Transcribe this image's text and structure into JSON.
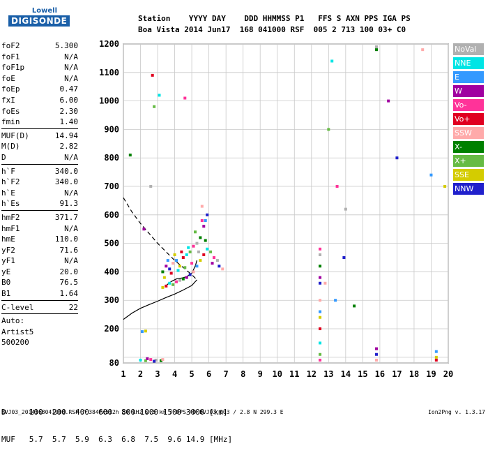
{
  "logo": {
    "top": "Lowell",
    "bottom": "DIGISONDE"
  },
  "header": {
    "row1": "Station    YYYY DAY    DDD HHMMSS P1   FFS S AXN PPS IGA PS",
    "row2": "Boa Vista 2014 Jun17  168 041000 RSF  005 2 713 100 03+ C0"
  },
  "params_group1": [
    {
      "name": "foF2",
      "value": "5.300"
    },
    {
      "name": "foF1",
      "value": "N/A"
    },
    {
      "name": "foF1p",
      "value": "N/A"
    },
    {
      "name": "foE",
      "value": "N/A"
    },
    {
      "name": "foEp",
      "value": "0.47"
    },
    {
      "name": "fxI",
      "value": "6.00"
    },
    {
      "name": "foEs",
      "value": "2.30"
    },
    {
      "name": "fmin",
      "value": "1.40"
    }
  ],
  "params_group2": [
    {
      "name": "MUF(D)",
      "value": "14.94"
    },
    {
      "name": "M(D)",
      "value": "2.82"
    },
    {
      "name": "D",
      "value": "N/A"
    }
  ],
  "params_group3": [
    {
      "name": "h`F",
      "value": "340.0"
    },
    {
      "name": "h`F2",
      "value": "340.0"
    },
    {
      "name": "h`E",
      "value": "N/A"
    },
    {
      "name": "h`Es",
      "value": "91.3"
    }
  ],
  "params_group4": [
    {
      "name": "hmF2",
      "value": "371.7"
    },
    {
      "name": "hmF1",
      "value": "N/A"
    },
    {
      "name": "hmE",
      "value": "110.0"
    },
    {
      "name": "yF2",
      "value": "71.6"
    },
    {
      "name": "yF1",
      "value": "N/A"
    },
    {
      "name": "yE",
      "value": "20.0"
    },
    {
      "name": "B0",
      "value": "76.5"
    },
    {
      "name": "B1",
      "value": "1.64"
    }
  ],
  "clevel": {
    "name": "C-level",
    "value": "22"
  },
  "auto": [
    "Auto:",
    "Artist5",
    "500200"
  ],
  "legend": [
    {
      "label": "NoVal",
      "color": "#b0b0b0"
    },
    {
      "label": "NNE",
      "color": "#00e5e5"
    },
    {
      "label": "E",
      "color": "#3399ff"
    },
    {
      "label": "W",
      "color": "#a000a0"
    },
    {
      "label": "Vo-",
      "color": "#ff3399"
    },
    {
      "label": "Vo+",
      "color": "#e00020"
    },
    {
      "label": "SSW",
      "color": "#ffaaaa"
    },
    {
      "label": "X-",
      "color": "#008000"
    },
    {
      "label": "X+",
      "color": "#66bb44"
    },
    {
      "label": "SSE",
      "color": "#d4cc00"
    },
    {
      "label": "NNW",
      "color": "#2020cc"
    }
  ],
  "bottom_table": {
    "row1": "D     100  200  400  600  800 1000 1500 3000 [km]",
    "row2": "MUF   5.7  5.7  5.9  6.3  6.8  7.5  9.6 14.9 [MHz]"
  },
  "footer_left": "BVJ03_2014168041000.RSF / 384fx512h 50 kHz 2.5 km / DPS-4D BVJ03 003 / 2.8 N 299.3 E",
  "footer_right": "Ion2Png v. 1.3.17",
  "chart_data": {
    "type": "scatter",
    "title": "",
    "xlabel": "",
    "ylabel": "",
    "xlim": [
      1,
      20
    ],
    "ylim": [
      80,
      1200
    ],
    "x_ticks": [
      1,
      2,
      3,
      4,
      5,
      6,
      7,
      8,
      9,
      10,
      11,
      12,
      13,
      14,
      15,
      16,
      17,
      18,
      19,
      20
    ],
    "y_ticks": [
      80,
      100,
      200,
      300,
      400,
      500,
      600,
      700,
      800,
      900,
      1000,
      1100,
      1200
    ],
    "y_tick_labels_shown": [
      80,
      200,
      300,
      400,
      500,
      600,
      700,
      800,
      900,
      1000,
      1100,
      1200
    ],
    "grid": true,
    "legend_placement": "right",
    "series": [
      {
        "kind": "line",
        "style": "solid",
        "x": [
          1.0,
          1.5,
          2.0,
          2.5,
          3.0,
          3.5,
          4.0,
          4.5,
          5.0,
          5.3
        ],
        "y": [
          233,
          255,
          272,
          285,
          297,
          310,
          322,
          336,
          352,
          372
        ]
      },
      {
        "kind": "line",
        "style": "dashed",
        "x": [
          1.0,
          1.5,
          2.0,
          2.5,
          3.0,
          3.5,
          4.0,
          4.5,
          5.0,
          5.3
        ],
        "y": [
          660,
          610,
          570,
          535,
          500,
          470,
          440,
          415,
          390,
          372
        ]
      },
      {
        "kind": "line",
        "style": "solid",
        "x": [
          3.5,
          3.8,
          4.1,
          4.4,
          4.7,
          5.0,
          5.2,
          5.3
        ],
        "y": [
          352,
          366,
          375,
          378,
          383,
          395,
          420,
          440
        ]
      },
      {
        "kind": "points",
        "name": "F trace",
        "points": [
          [
            3.3,
            345
          ],
          [
            3.5,
            350
          ],
          [
            3.7,
            360
          ],
          [
            3.9,
            355
          ],
          [
            4.1,
            365
          ],
          [
            4.3,
            370
          ],
          [
            4.5,
            375
          ],
          [
            4.7,
            380
          ],
          [
            4.9,
            390
          ],
          [
            5.1,
            400
          ],
          [
            5.3,
            420
          ],
          [
            5.5,
            440
          ],
          [
            5.7,
            460
          ],
          [
            5.9,
            480
          ],
          [
            6.1,
            470
          ],
          [
            6.3,
            450
          ],
          [
            6.5,
            440
          ],
          [
            3.3,
            400
          ],
          [
            3.5,
            420
          ],
          [
            3.7,
            410
          ],
          [
            3.9,
            430
          ],
          [
            4.1,
            440
          ],
          [
            4.3,
            420
          ],
          [
            4.5,
            450
          ],
          [
            4.7,
            460
          ],
          [
            4.9,
            470
          ],
          [
            5.1,
            490
          ],
          [
            5.3,
            500
          ],
          [
            5.5,
            520
          ],
          [
            5.7,
            560
          ],
          [
            5.9,
            600
          ],
          [
            5.6,
            630
          ],
          [
            5.8,
            580
          ],
          [
            3.4,
            380
          ],
          [
            3.8,
            395
          ],
          [
            4.2,
            405
          ],
          [
            4.6,
            415
          ],
          [
            5.0,
            430
          ],
          [
            5.4,
            470
          ],
          [
            5.8,
            510
          ],
          [
            6.2,
            430
          ],
          [
            6.6,
            420
          ],
          [
            6.8,
            410
          ],
          [
            3.6,
            440
          ],
          [
            4.0,
            460
          ],
          [
            4.4,
            470
          ],
          [
            4.8,
            485
          ],
          [
            5.2,
            540
          ],
          [
            5.6,
            580
          ]
        ]
      },
      {
        "kind": "points",
        "name": "Es trace",
        "points": [
          [
            2.0,
            90
          ],
          [
            2.3,
            88
          ],
          [
            2.6,
            92
          ],
          [
            2.9,
            90
          ],
          [
            3.2,
            88
          ],
          [
            2.4,
            95
          ],
          [
            2.8,
            86
          ],
          [
            3.3,
            92
          ],
          [
            2.1,
            190
          ],
          [
            2.3,
            192
          ]
        ]
      },
      {
        "kind": "points",
        "name": "scattered",
        "points": [
          [
            12.5,
            480
          ],
          [
            12.5,
            460
          ],
          [
            12.5,
            420
          ],
          [
            12.5,
            380
          ],
          [
            12.5,
            360
          ],
          [
            12.5,
            300
          ],
          [
            12.5,
            260
          ],
          [
            12.5,
            240
          ],
          [
            12.5,
            200
          ],
          [
            12.5,
            150
          ],
          [
            12.5,
            110
          ],
          [
            12.5,
            90
          ],
          [
            15.8,
            1190
          ],
          [
            15.8,
            1180
          ],
          [
            15.8,
            130
          ],
          [
            15.8,
            110
          ],
          [
            15.8,
            90
          ],
          [
            19.3,
            120
          ],
          [
            19.3,
            100
          ],
          [
            19.3,
            90
          ],
          [
            13.2,
            1140
          ],
          [
            13.0,
            900
          ],
          [
            13.5,
            700
          ],
          [
            14.0,
            620
          ],
          [
            14.5,
            280
          ],
          [
            16.5,
            1000
          ],
          [
            17.0,
            800
          ],
          [
            18.5,
            1180
          ],
          [
            19.0,
            740
          ],
          [
            19.8,
            700
          ],
          [
            2.7,
            1090
          ],
          [
            3.1,
            1020
          ],
          [
            2.8,
            980
          ],
          [
            4.6,
            1010
          ],
          [
            2.6,
            700
          ],
          [
            1.4,
            810
          ],
          [
            2.2,
            550
          ],
          [
            13.9,
            450
          ],
          [
            12.8,
            360
          ],
          [
            13.4,
            300
          ]
        ]
      }
    ]
  }
}
